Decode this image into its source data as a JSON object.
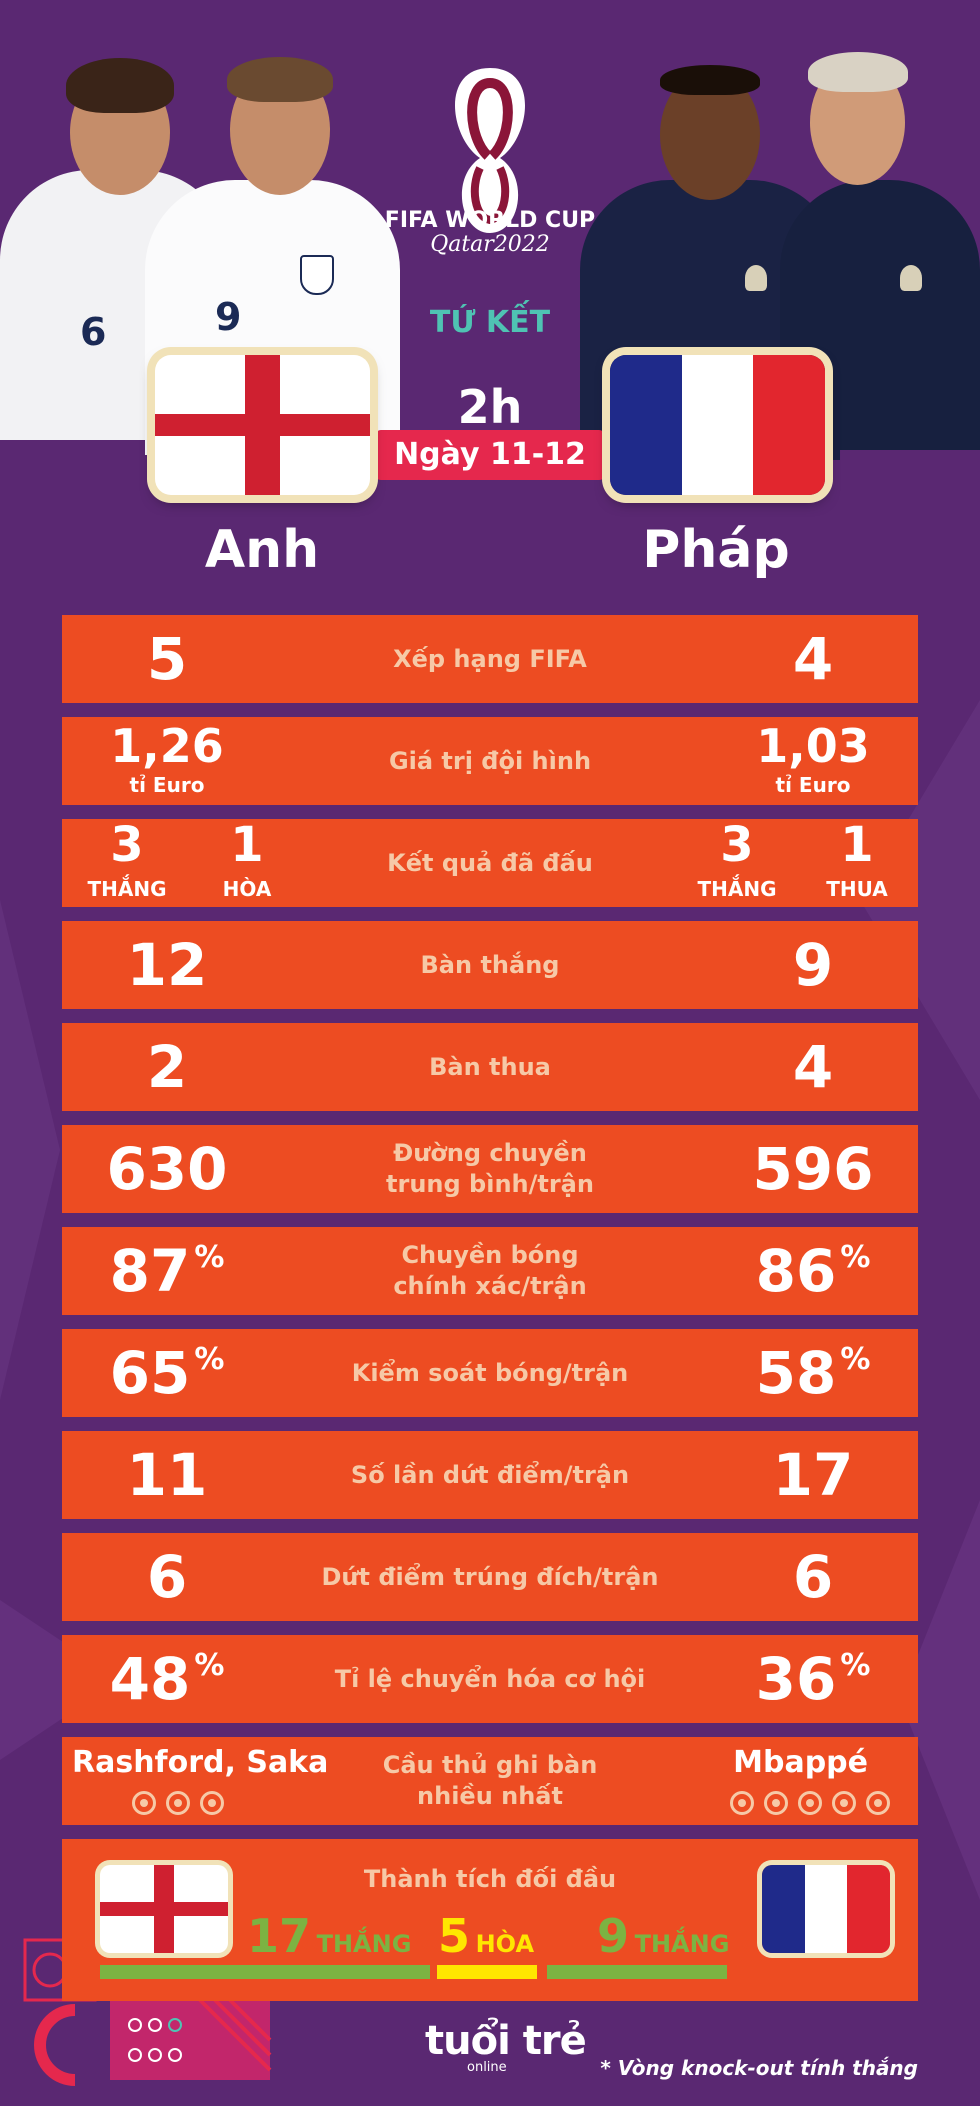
{
  "header": {
    "wc_line1": "FIFA WORLD CUP",
    "wc_line2": "Qatar2022",
    "round": "TỨ KẾT",
    "time": "2h",
    "date": "Ngày 11-12",
    "home_team": "Anh",
    "away_team": "Pháp",
    "home_shirt_numbers": [
      "6",
      "9"
    ]
  },
  "colors": {
    "background": "#5a2872",
    "row": "#ed4c22",
    "label": "#f6c9a7",
    "win": "#7cb342",
    "draw": "#ffe600"
  },
  "stats": [
    {
      "label": "Xếp hạng FIFA",
      "home": "5",
      "away": "4"
    },
    {
      "label": "Giá trị đội hình",
      "home": "1,26",
      "home_unit": "tỉ Euro",
      "away": "1,03",
      "away_unit": "tỉ Euro"
    },
    {
      "label": "Kết quả đã đấu",
      "home_a": "3",
      "home_a_lbl": "THẮNG",
      "home_b": "1",
      "home_b_lbl": "HÒA",
      "away_a": "3",
      "away_a_lbl": "THẮNG",
      "away_b": "1",
      "away_b_lbl": "THUA"
    },
    {
      "label": "Bàn thắng",
      "home": "12",
      "away": "9"
    },
    {
      "label": "Bàn thua",
      "home": "2",
      "away": "4"
    },
    {
      "label1": "Đường chuyền",
      "label2": "trung bình/trận",
      "home": "630",
      "away": "596"
    },
    {
      "label1": "Chuyền bóng",
      "label2": "chính xác/trận",
      "home": "87",
      "away": "86",
      "unit": "%"
    },
    {
      "label": "Kiểm soát bóng/trận",
      "home": "65",
      "away": "58",
      "unit": "%"
    },
    {
      "label": "Số lần dứt điểm/trận",
      "home": "11",
      "away": "17"
    },
    {
      "label": "Dứt điểm trúng đích/trận",
      "home": "6",
      "away": "6"
    },
    {
      "label": "Tỉ lệ chuyển hóa cơ hội",
      "home": "48",
      "away": "36",
      "unit": "%"
    }
  ],
  "top_scorer": {
    "label1": "Cầu thủ ghi bàn",
    "label2": "nhiều nhất",
    "home": "Rashford, Saka",
    "home_goals": 3,
    "away": "Mbappé",
    "away_goals": 5
  },
  "head_to_head": {
    "title": "Thành tích đối đầu",
    "home_wins": "17",
    "home_wins_lbl": "THẮNG",
    "draws": "5",
    "draws_lbl": "HÒA",
    "away_wins": "9",
    "away_wins_lbl": "THẮNG"
  },
  "footer": {
    "brand": "tuổi trẻ",
    "brand_sub": "online",
    "note": "* Vòng knock-out tính thắng"
  }
}
